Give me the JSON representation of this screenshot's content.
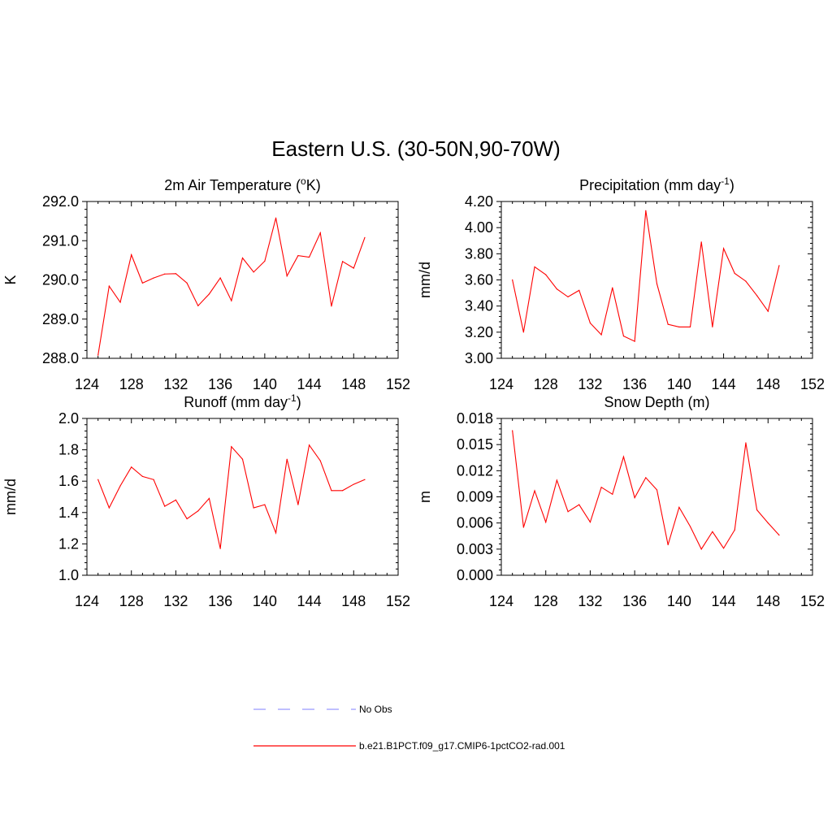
{
  "figure": {
    "title": "Eastern U.S. (30-50N,90-70W)"
  },
  "legend": {
    "placement": "bottom-center",
    "items": [
      {
        "label": "No Obs",
        "color": "#9999ff",
        "style": "dashed"
      },
      {
        "label": "b.e21.B1PCT.f09_g17.CMIP6-1pctCO2-rad.001",
        "color": "#ff0000",
        "style": "solid"
      }
    ]
  },
  "chart_data": [
    {
      "type": "line",
      "title": "2m Air Temperature (",
      "title_sup": "o",
      "title_after": "K)",
      "ylabel": "K",
      "xlim": [
        124,
        152
      ],
      "ylim": [
        288.0,
        292.0
      ],
      "x_ticks": [
        124,
        128,
        132,
        136,
        140,
        144,
        148,
        152
      ],
      "y_ticks": [
        "288.0",
        "289.0",
        "290.0",
        "291.0",
        "292.0"
      ],
      "grid": false,
      "series": [
        {
          "color": "#ff0000",
          "x": [
            125,
            126,
            127,
            128,
            129,
            130,
            131,
            132,
            133,
            134,
            135,
            136,
            137,
            138,
            139,
            140,
            141,
            142,
            143,
            144,
            145,
            146,
            147,
            148,
            149
          ],
          "y": [
            288.08,
            289.84,
            289.43,
            290.64,
            289.92,
            290.05,
            290.15,
            290.16,
            289.92,
            289.34,
            289.64,
            290.05,
            289.47,
            290.56,
            290.2,
            290.48,
            291.58,
            290.1,
            290.62,
            290.58,
            291.2,
            289.33,
            290.47,
            290.3,
            291.08
          ]
        }
      ]
    },
    {
      "type": "line",
      "title": "Precipitation (mm day",
      "title_sup": "-1",
      "title_after": ")",
      "ylabel": "mm/d",
      "xlim": [
        124,
        152
      ],
      "ylim": [
        3.0,
        4.2
      ],
      "x_ticks": [
        124,
        128,
        132,
        136,
        140,
        144,
        148,
        152
      ],
      "y_ticks": [
        "3.00",
        "3.20",
        "3.40",
        "3.60",
        "3.80",
        "4.00",
        "4.20"
      ],
      "grid": false,
      "series": [
        {
          "color": "#ff0000",
          "x": [
            125,
            126,
            127,
            128,
            129,
            130,
            131,
            132,
            133,
            134,
            135,
            136,
            137,
            138,
            139,
            140,
            141,
            142,
            143,
            144,
            145,
            146,
            147,
            148,
            149
          ],
          "y": [
            3.6,
            3.2,
            3.7,
            3.64,
            3.53,
            3.47,
            3.52,
            3.27,
            3.18,
            3.54,
            3.17,
            3.13,
            4.13,
            3.57,
            3.26,
            3.24,
            3.24,
            3.89,
            3.24,
            3.84,
            3.65,
            3.59,
            3.48,
            3.36,
            3.71
          ]
        }
      ]
    },
    {
      "type": "line",
      "title": "Runoff (mm day",
      "title_sup": "-1",
      "title_after": ")",
      "ylabel": "mm/d",
      "xlim": [
        124,
        152
      ],
      "ylim": [
        1.0,
        2.0
      ],
      "x_ticks": [
        124,
        128,
        132,
        136,
        140,
        144,
        148,
        152
      ],
      "y_ticks": [
        "1.0",
        "1.2",
        "1.4",
        "1.6",
        "1.8",
        "2.0"
      ],
      "grid": false,
      "series": [
        {
          "color": "#ff0000",
          "x": [
            125,
            126,
            127,
            128,
            129,
            130,
            131,
            132,
            133,
            134,
            135,
            136,
            137,
            138,
            139,
            140,
            141,
            142,
            143,
            144,
            145,
            146,
            147,
            148,
            149
          ],
          "y": [
            1.61,
            1.43,
            1.57,
            1.69,
            1.63,
            1.61,
            1.44,
            1.48,
            1.36,
            1.41,
            1.49,
            1.17,
            1.82,
            1.74,
            1.43,
            1.45,
            1.27,
            1.74,
            1.45,
            1.83,
            1.73,
            1.54,
            1.54,
            1.58,
            1.61
          ]
        }
      ]
    },
    {
      "type": "line",
      "title": "Snow Depth (m)",
      "title_sup": "",
      "title_after": "",
      "ylabel": "m",
      "xlim": [
        124,
        152
      ],
      "ylim": [
        0.0,
        0.018
      ],
      "x_ticks": [
        124,
        128,
        132,
        136,
        140,
        144,
        148,
        152
      ],
      "y_ticks": [
        "0.000",
        "0.003",
        "0.006",
        "0.009",
        "0.012",
        "0.015",
        "0.018"
      ],
      "grid": false,
      "series": [
        {
          "color": "#ff0000",
          "x": [
            125,
            126,
            127,
            128,
            129,
            130,
            131,
            132,
            133,
            134,
            135,
            136,
            137,
            138,
            139,
            140,
            141,
            142,
            143,
            144,
            145,
            146,
            147,
            148,
            149
          ],
          "y": [
            0.0166,
            0.0055,
            0.0097,
            0.0061,
            0.0109,
            0.0073,
            0.0081,
            0.0061,
            0.0101,
            0.0093,
            0.0136,
            0.0089,
            0.0112,
            0.0098,
            0.0035,
            0.0078,
            0.0056,
            0.003,
            0.005,
            0.0031,
            0.0052,
            0.0152,
            0.0075,
            0.006,
            0.0046
          ]
        }
      ]
    }
  ]
}
